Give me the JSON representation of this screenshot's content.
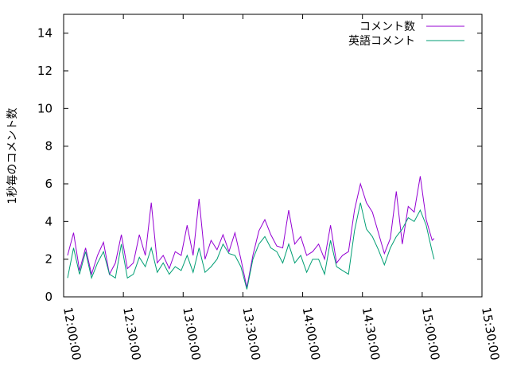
{
  "chart_data": {
    "type": "line",
    "ylabel": "1秒毎のコメント数",
    "xlabel": "",
    "title": "",
    "xlim": [
      "12:00:00",
      "15:30:00"
    ],
    "ylim": [
      0,
      15
    ],
    "x_ticks": [
      "12:00:00",
      "12:30:00",
      "13:00:00",
      "13:30:00",
      "14:00:00",
      "14:30:00",
      "15:00:00",
      "15:30:00"
    ],
    "y_ticks": [
      0,
      2,
      4,
      6,
      8,
      10,
      12,
      14
    ],
    "grid": false,
    "legend_position": "top-right",
    "x": [
      "12:02:00",
      "12:05:00",
      "12:08:00",
      "12:11:00",
      "12:14:00",
      "12:17:00",
      "12:20:00",
      "12:23:00",
      "12:26:00",
      "12:29:00",
      "12:32:00",
      "12:35:00",
      "12:38:00",
      "12:41:00",
      "12:44:00",
      "12:47:00",
      "12:50:00",
      "12:53:00",
      "12:56:00",
      "12:59:00",
      "13:02:00",
      "13:05:00",
      "13:08:00",
      "13:11:00",
      "13:14:00",
      "13:17:00",
      "13:20:00",
      "13:23:00",
      "13:26:00",
      "13:29:00",
      "13:32:00",
      "13:35:00",
      "13:38:00",
      "13:41:00",
      "13:44:00",
      "13:47:00",
      "13:50:00",
      "13:53:00",
      "13:56:00",
      "13:59:00",
      "14:02:00",
      "14:05:00",
      "14:08:00",
      "14:11:00",
      "14:14:00",
      "14:17:00",
      "14:20:00",
      "14:23:00",
      "14:26:00",
      "14:29:00",
      "14:32:00",
      "14:35:00",
      "14:38:00",
      "14:41:00",
      "14:44:00",
      "14:47:00",
      "14:50:00",
      "14:53:00",
      "14:56:00",
      "14:59:00",
      "15:02:00",
      "15:05:00",
      "15:06:00"
    ],
    "series": [
      {
        "name": "コメント数",
        "color": "#9400d3",
        "values": [
          2.2,
          3.4,
          1.4,
          2.6,
          1.2,
          2.2,
          2.9,
          1.2,
          1.8,
          3.3,
          1.5,
          1.8,
          3.3,
          2.2,
          5.0,
          1.8,
          2.2,
          1.5,
          2.4,
          2.2,
          3.8,
          2.2,
          5.2,
          2.0,
          3.0,
          2.5,
          3.3,
          2.4,
          3.4,
          2.0,
          0.5,
          2.2,
          3.5,
          4.1,
          3.3,
          2.7,
          2.6,
          4.6,
          2.8,
          3.2,
          2.2,
          2.4,
          2.8,
          2.0,
          3.8,
          1.8,
          2.2,
          2.4,
          4.6,
          6.0,
          5.0,
          4.5,
          3.4,
          2.3,
          3.1,
          5.6,
          2.8,
          4.8,
          4.5,
          6.4,
          4.1,
          3.0,
          3.1
        ]
      },
      {
        "name": "英語コメント",
        "color": "#009e73",
        "values": [
          1.0,
          2.6,
          1.2,
          2.4,
          1.0,
          1.8,
          2.4,
          1.2,
          1.0,
          2.8,
          1.0,
          1.2,
          2.1,
          1.6,
          2.6,
          1.3,
          1.8,
          1.2,
          1.6,
          1.4,
          2.2,
          1.3,
          2.6,
          1.3,
          1.6,
          2.0,
          2.8,
          2.3,
          2.2,
          1.6,
          0.4,
          2.0,
          2.8,
          3.2,
          2.6,
          2.4,
          1.8,
          2.8,
          1.8,
          2.2,
          1.3,
          2.0,
          2.0,
          1.2,
          3.0,
          1.6,
          1.4,
          1.2,
          3.5,
          5.0,
          3.6,
          3.2,
          2.5,
          1.7,
          2.6,
          3.2,
          3.6,
          4.2,
          4.0,
          4.6,
          3.8,
          2.4,
          2.0
        ]
      }
    ]
  }
}
